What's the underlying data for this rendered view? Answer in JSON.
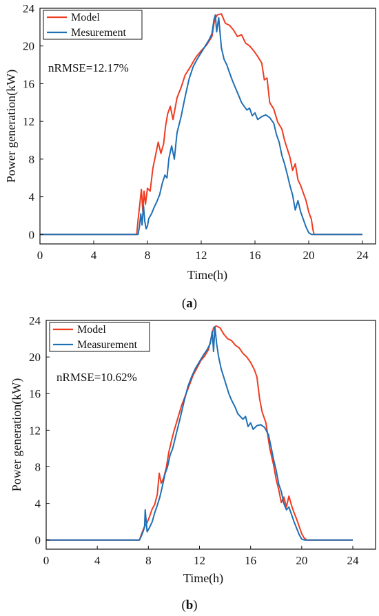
{
  "chart_data": [
    {
      "type": "line",
      "panel_label": "a",
      "xlabel": "Time(h)",
      "ylabel": "Power generation(kW)",
      "xlim": [
        0,
        24
      ],
      "ylim": [
        -1,
        24
      ],
      "xticks": [
        0,
        4,
        8,
        12,
        16,
        20,
        24
      ],
      "yticks": [
        0,
        4,
        8,
        12,
        16,
        20,
        24
      ],
      "legend_position": "top-left",
      "annotation": "nRMSE=12.17%",
      "series": [
        {
          "name": "Model",
          "color": "#ef3b22",
          "x": [
            0,
            7.2,
            7.3,
            7.45,
            7.55,
            7.65,
            7.75,
            7.85,
            8.0,
            8.2,
            8.4,
            8.6,
            8.8,
            9.0,
            9.2,
            9.35,
            9.5,
            9.7,
            9.9,
            10.2,
            10.5,
            10.8,
            11.2,
            11.6,
            12.0,
            12.4,
            12.8,
            13.0,
            13.2,
            13.5,
            13.8,
            14.1,
            14.4,
            14.7,
            15.0,
            15.3,
            15.6,
            15.9,
            16.2,
            16.5,
            16.7,
            16.9,
            17.1,
            17.4,
            17.7,
            18.0,
            18.2,
            18.4,
            18.6,
            18.8,
            19.0,
            19.2,
            19.4,
            19.6,
            19.8,
            20.0,
            20.2,
            20.3,
            20.4,
            24.0
          ],
          "y": [
            0,
            0,
            1.5,
            3.5,
            4.8,
            2.5,
            4.6,
            3.2,
            4.9,
            4.6,
            7.0,
            8.4,
            9.8,
            8.6,
            9.6,
            11.5,
            12.8,
            13.6,
            12.2,
            14.5,
            15.6,
            16.9,
            17.8,
            18.8,
            19.5,
            20.1,
            21.0,
            22.8,
            23.3,
            23.4,
            22.4,
            22.2,
            21.7,
            21.0,
            21.2,
            20.3,
            20.0,
            19.5,
            18.9,
            18.2,
            16.4,
            16.6,
            14.0,
            13.3,
            11.9,
            11.2,
            10.0,
            9.1,
            8.2,
            6.8,
            7.5,
            5.8,
            5.2,
            4.4,
            3.6,
            2.4,
            1.6,
            0.6,
            0,
            0
          ]
        },
        {
          "name": "Mesurement",
          "color": "#1f6fb4",
          "x": [
            0,
            7.3,
            7.4,
            7.5,
            7.6,
            7.7,
            7.8,
            7.9,
            8.0,
            8.1,
            8.3,
            8.5,
            8.7,
            8.9,
            9.1,
            9.3,
            9.45,
            9.6,
            9.8,
            10.0,
            10.2,
            10.5,
            10.8,
            11.1,
            11.4,
            11.7,
            12.0,
            12.3,
            12.6,
            12.8,
            12.95,
            13.05,
            13.15,
            13.3,
            13.5,
            13.7,
            13.9,
            14.1,
            14.3,
            14.5,
            14.8,
            15.0,
            15.2,
            15.4,
            15.6,
            15.8,
            16.0,
            16.2,
            16.5,
            16.8,
            17.1,
            17.4,
            17.6,
            17.8,
            18.0,
            18.2,
            18.4,
            18.6,
            18.8,
            19.0,
            19.2,
            19.4,
            19.6,
            19.8,
            20.0,
            20.2,
            24.0
          ],
          "y": [
            0,
            0,
            0.8,
            2.2,
            1.0,
            3.1,
            1.4,
            0.6,
            0.9,
            1.7,
            2.2,
            2.9,
            3.5,
            4.2,
            5.4,
            6.3,
            6.0,
            8.1,
            9.4,
            8.0,
            10.8,
            12.5,
            14.6,
            16.5,
            17.8,
            18.6,
            19.3,
            20.0,
            20.7,
            21.3,
            22.8,
            23.3,
            21.5,
            23.0,
            19.8,
            18.6,
            18.0,
            17.2,
            16.4,
            15.7,
            14.7,
            14.0,
            13.6,
            13.2,
            13.4,
            12.6,
            12.9,
            12.2,
            12.5,
            12.7,
            12.4,
            11.8,
            10.6,
            9.8,
            8.4,
            7.5,
            6.4,
            5.2,
            4.2,
            2.6,
            3.6,
            2.4,
            1.6,
            0.8,
            0.2,
            0,
            0
          ]
        }
      ]
    },
    {
      "type": "line",
      "panel_label": "b",
      "xlabel": "Time(h)",
      "ylabel": "Power generation(kW)",
      "xlim": [
        0,
        24
      ],
      "ylim": [
        -1,
        24
      ],
      "xticks": [
        0,
        4,
        8,
        12,
        16,
        20,
        24
      ],
      "yticks": [
        0,
        4,
        8,
        12,
        16,
        20,
        24
      ],
      "legend_position": "top-left",
      "annotation": "nRMSE=10.62%",
      "series": [
        {
          "name": "Model",
          "color": "#ef3b22",
          "x": [
            0,
            7.3,
            7.5,
            7.7,
            7.9,
            8.1,
            8.3,
            8.5,
            8.7,
            8.85,
            9.0,
            9.2,
            9.4,
            9.6,
            9.8,
            10.0,
            10.3,
            10.6,
            10.9,
            11.2,
            11.5,
            11.8,
            12.1,
            12.4,
            12.7,
            12.9,
            13.1,
            13.3,
            13.6,
            13.9,
            14.2,
            14.5,
            14.8,
            15.1,
            15.4,
            15.7,
            16.0,
            16.3,
            16.5,
            16.7,
            16.9,
            17.2,
            17.5,
            17.8,
            18.0,
            18.2,
            18.4,
            18.6,
            18.8,
            19.0,
            19.2,
            19.4,
            19.6,
            19.8,
            20.0,
            20.2,
            20.4,
            24.0
          ],
          "y": [
            0,
            0,
            0.8,
            1.5,
            1.9,
            2.6,
            3.4,
            3.9,
            5.0,
            7.3,
            6.2,
            6.8,
            7.9,
            9.6,
            10.8,
            11.9,
            13.3,
            14.7,
            15.8,
            16.9,
            18.0,
            18.8,
            19.6,
            20.1,
            20.8,
            22.0,
            23.2,
            23.4,
            23.2,
            22.5,
            22.0,
            21.8,
            21.3,
            21.0,
            20.4,
            20.0,
            19.4,
            18.6,
            17.8,
            15.5,
            14.0,
            12.8,
            10.0,
            8.2,
            6.6,
            5.5,
            4.1,
            4.7,
            3.6,
            4.8,
            3.8,
            3.0,
            2.3,
            1.5,
            0.7,
            0.2,
            0,
            0
          ]
        },
        {
          "name": "Measurement",
          "color": "#1f6fb4",
          "x": [
            0,
            7.3,
            7.5,
            7.7,
            7.75,
            7.9,
            8.1,
            8.3,
            8.5,
            8.7,
            8.9,
            9.1,
            9.3,
            9.5,
            9.7,
            9.9,
            10.2,
            10.5,
            10.8,
            11.1,
            11.4,
            11.7,
            12.0,
            12.3,
            12.6,
            12.85,
            13.0,
            13.1,
            13.2,
            13.35,
            13.5,
            13.7,
            13.9,
            14.1,
            14.3,
            14.5,
            14.8,
            15.0,
            15.2,
            15.4,
            15.6,
            15.8,
            16.0,
            16.2,
            16.5,
            16.8,
            17.1,
            17.4,
            17.6,
            17.8,
            18.0,
            18.2,
            18.4,
            18.6,
            18.8,
            19.0,
            19.2,
            19.4,
            19.6,
            19.8,
            20.0,
            20.2,
            24.0
          ],
          "y": [
            0,
            0,
            0.6,
            1.4,
            3.3,
            0.9,
            1.4,
            2.0,
            3.0,
            3.8,
            4.7,
            5.9,
            7.2,
            8.0,
            9.3,
            10.0,
            11.7,
            13.4,
            15.2,
            16.8,
            17.9,
            18.8,
            19.5,
            20.2,
            20.8,
            21.5,
            22.8,
            20.6,
            23.3,
            21.4,
            20.0,
            18.7,
            17.8,
            16.9,
            16.0,
            15.3,
            14.5,
            13.8,
            13.5,
            13.2,
            13.5,
            12.4,
            12.8,
            12.1,
            12.5,
            12.6,
            12.3,
            11.5,
            10.2,
            8.8,
            7.6,
            6.1,
            5.3,
            4.0,
            3.3,
            3.6,
            2.8,
            2.0,
            1.3,
            0.6,
            0.1,
            0,
            0
          ]
        }
      ]
    }
  ]
}
